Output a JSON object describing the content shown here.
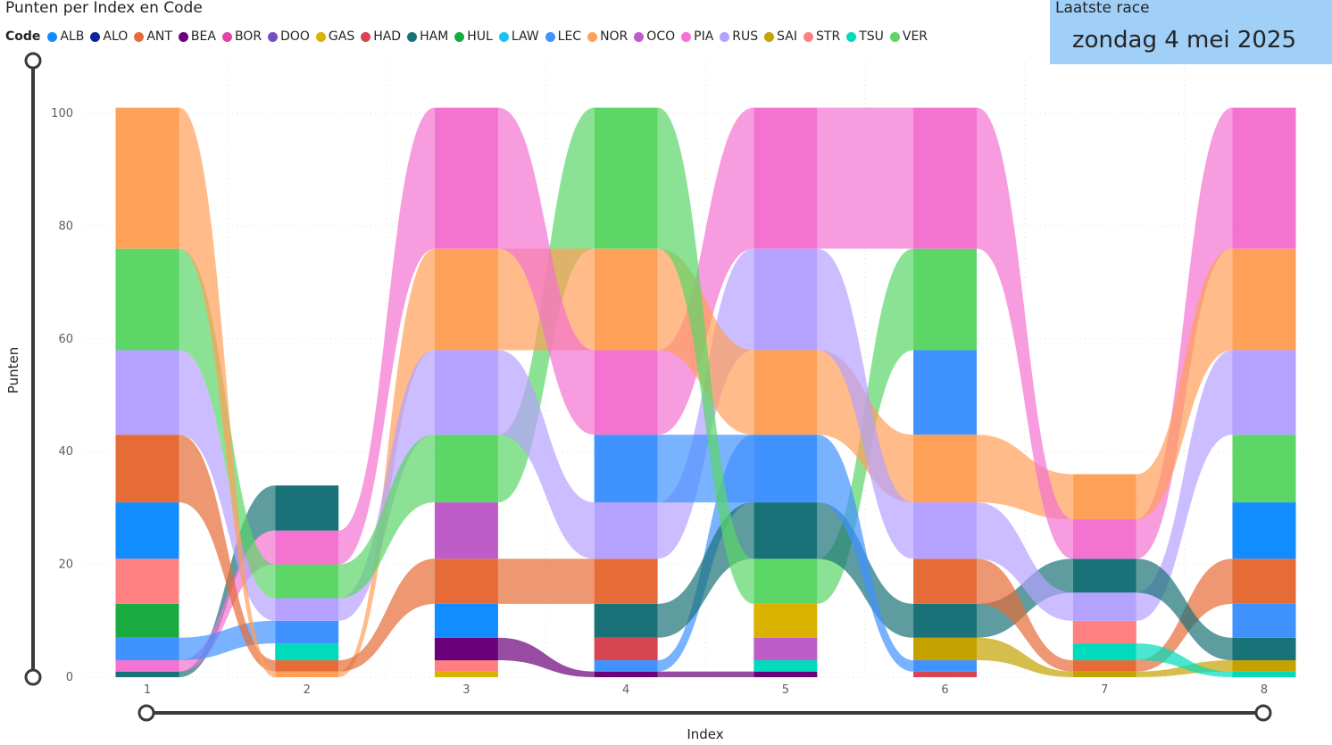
{
  "title": "Punten per Index en Code",
  "card": {
    "label": "Laatste race",
    "value": "zondag 4 mei 2025"
  },
  "legend": {
    "title": "Code",
    "items": [
      {
        "code": "ALB",
        "color": "#118DFF"
      },
      {
        "code": "ALO",
        "color": "#12239E"
      },
      {
        "code": "ANT",
        "color": "#E66C37"
      },
      {
        "code": "BEA",
        "color": "#6B007B"
      },
      {
        "code": "BOR",
        "color": "#E044A7"
      },
      {
        "code": "DOO",
        "color": "#744EC2"
      },
      {
        "code": "GAS",
        "color": "#D9B300"
      },
      {
        "code": "HAD",
        "color": "#D64550"
      },
      {
        "code": "HAM",
        "color": "#197278"
      },
      {
        "code": "HUL",
        "color": "#1AAB40"
      },
      {
        "code": "LAW",
        "color": "#15C6F4"
      },
      {
        "code": "LEC",
        "color": "#4092FF"
      },
      {
        "code": "NOR",
        "color": "#FFA058"
      },
      {
        "code": "OCO",
        "color": "#BE5DC9"
      },
      {
        "code": "PIA",
        "color": "#F472D0"
      },
      {
        "code": "RUS",
        "color": "#B5A1FF"
      },
      {
        "code": "SAI",
        "color": "#C4A200"
      },
      {
        "code": "STR",
        "color": "#FF8080"
      },
      {
        "code": "TSU",
        "color": "#00DBBC"
      },
      {
        "code": "VER",
        "color": "#5BD667"
      }
    ]
  },
  "chart_data": {
    "type": "ribbon",
    "title": "Punten per Index en Code",
    "xlabel": "Index",
    "ylabel": "Punten",
    "categories": [
      "1",
      "2",
      "3",
      "4",
      "5",
      "6",
      "7",
      "8"
    ],
    "ylim": [
      0,
      100
    ],
    "yticks": [
      0,
      20,
      40,
      60,
      80,
      100
    ],
    "stacks": [
      [
        [
          "HAM",
          1
        ],
        [
          "PIA",
          2
        ],
        [
          "LEC",
          4
        ],
        [
          "HUL",
          6
        ],
        [
          "STR",
          8
        ],
        [
          "ALB",
          10
        ],
        [
          "ANT",
          12
        ],
        [
          "RUS",
          15
        ],
        [
          "VER",
          18
        ],
        [
          "NOR",
          25
        ]
      ],
      [
        [
          "NOR",
          1
        ],
        [
          "ANT",
          2
        ],
        [
          "TSU",
          3
        ],
        [
          "LEC",
          4
        ],
        [
          "RUS",
          4
        ],
        [
          "VER",
          6
        ],
        [
          "PIA",
          6
        ],
        [
          "HAM",
          8
        ]
      ],
      [
        [
          "GAS",
          1
        ],
        [
          "STR",
          2
        ],
        [
          "BEA",
          4
        ],
        [
          "ALB",
          6
        ],
        [
          "ANT",
          8
        ],
        [
          "OCO",
          10
        ],
        [
          "VER",
          12
        ],
        [
          "RUS",
          15
        ],
        [
          "NOR",
          18
        ],
        [
          "PIA",
          25
        ]
      ],
      [
        [
          "BEA",
          1
        ],
        [
          "LEC",
          2
        ],
        [
          "HAD",
          4
        ],
        [
          "HAM",
          6
        ],
        [
          "ANT",
          8
        ],
        [
          "RUS",
          10
        ],
        [
          "LEC",
          12
        ],
        [
          "PIA",
          15
        ],
        [
          "NOR",
          18
        ],
        [
          "VER",
          25
        ]
      ],
      [
        [
          "BEA",
          1
        ],
        [
          "TSU",
          2
        ],
        [
          "OCO",
          4
        ],
        [
          "GAS",
          6
        ],
        [
          "VER",
          8
        ],
        [
          "HAM",
          10
        ],
        [
          "LEC",
          12
        ],
        [
          "NOR",
          15
        ],
        [
          "RUS",
          18
        ],
        [
          "PIA",
          25
        ]
      ],
      [
        [
          "HAD",
          1
        ],
        [
          "LEC",
          2
        ],
        [
          "SAI",
          4
        ],
        [
          "HAM",
          6
        ],
        [
          "ANT",
          8
        ],
        [
          "RUS",
          10
        ],
        [
          "NOR",
          12
        ],
        [
          "LEC",
          15
        ],
        [
          "VER",
          18
        ],
        [
          "PIA",
          25
        ]
      ],
      [
        [
          "SAI",
          1
        ],
        [
          "ANT",
          2
        ],
        [
          "TSU",
          3
        ],
        [
          "STR",
          4
        ],
        [
          "RUS",
          5
        ],
        [
          "HAM",
          6
        ],
        [
          "PIA",
          7
        ],
        [
          "NOR",
          8
        ]
      ],
      [
        [
          "TSU",
          1
        ],
        [
          "SAI",
          2
        ],
        [
          "HAM",
          4
        ],
        [
          "LEC",
          6
        ],
        [
          "ANT",
          8
        ],
        [
          "ALB",
          10
        ],
        [
          "VER",
          12
        ],
        [
          "RUS",
          15
        ],
        [
          "NOR",
          18
        ],
        [
          "PIA",
          25
        ]
      ]
    ]
  },
  "slider_y": {
    "min": 0,
    "max": 100
  },
  "slider_x": {
    "min": 1,
    "max": 8
  }
}
